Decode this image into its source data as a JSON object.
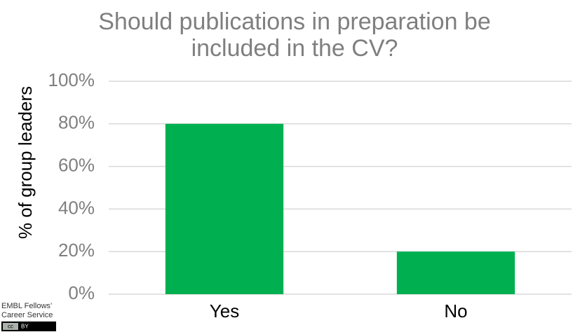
{
  "chart_data": {
    "type": "bar",
    "title": "Should publications in preparation be included in the CV?",
    "y_label": "% of group leaders",
    "categories": [
      "Yes",
      "No"
    ],
    "values": [
      80,
      20
    ],
    "color": "#00b050",
    "ylim": [
      0,
      100
    ],
    "yticks": [
      {
        "value": 0,
        "label": "0%"
      },
      {
        "value": 20,
        "label": "20%"
      },
      {
        "value": 40,
        "label": "40%"
      },
      {
        "value": 60,
        "label": "60%"
      },
      {
        "value": 80,
        "label": "80%"
      },
      {
        "value": 100,
        "label": "100%"
      }
    ],
    "grid": true
  },
  "footer": {
    "lines": [
      "EMBL Fellows’",
      "Career Service"
    ],
    "license_icon": "cc",
    "license": "BY"
  }
}
